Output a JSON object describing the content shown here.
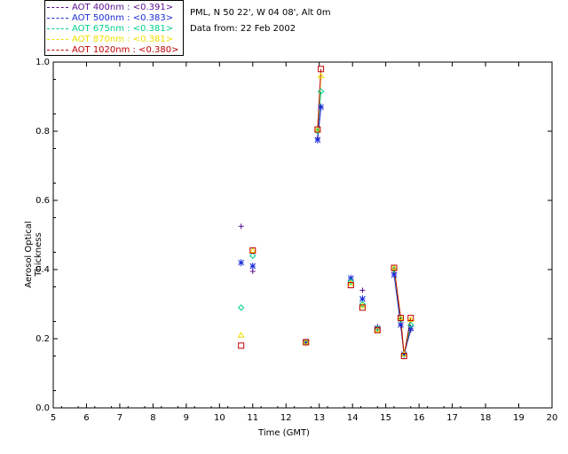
{
  "header": {
    "site": "PML, N 50 22', W 04 08', Alt 0m",
    "date": "Data from: 22 Feb 2002"
  },
  "legend": [
    {
      "label": "AOT  400nm : <0.391>",
      "color": "#5b0f8f"
    },
    {
      "label": "AOT  500nm : <0.383>",
      "color": "#1a2bd6"
    },
    {
      "label": "AOT  675nm : <0.381>",
      "color": "#00d08a"
    },
    {
      "label": "AOT  870nm : <0.381>",
      "color": "#f0e000"
    },
    {
      "label": "AOT 1020nm : <0.380>",
      "color": "#c00000"
    }
  ],
  "chart_data": {
    "type": "scatter",
    "xlabel": "Time (GMT)",
    "ylabel": "Aerosol Optical Thickness",
    "xlim": [
      5,
      20
    ],
    "ylim": [
      0.0,
      1.0
    ],
    "xticks": [
      5,
      6,
      7,
      8,
      9,
      10,
      11,
      12,
      13,
      14,
      15,
      16,
      17,
      18,
      19,
      20
    ],
    "yticks": [
      "0.0",
      "0.2",
      "0.4",
      "0.6",
      "0.8",
      "1.0"
    ],
    "series": [
      {
        "name": "AOT  400nm : <0.391>",
        "marker": "plus",
        "color": "#5b0f8f",
        "points": [
          [
            10.65,
            0.525
          ],
          [
            11.0,
            0.395
          ],
          [
            12.6,
            0.19
          ],
          [
            12.95,
            0.78
          ],
          [
            13.05,
            0.87
          ],
          [
            13.95,
            0.37
          ],
          [
            14.3,
            0.34
          ],
          [
            14.75,
            0.235
          ],
          [
            15.25,
            0.39
          ],
          [
            15.45,
            0.24
          ],
          [
            15.55,
            0.155
          ],
          [
            15.75,
            0.225
          ]
        ],
        "segments": [
          [
            [
              12.95,
              0.78
            ],
            [
              13.05,
              0.87
            ]
          ],
          [
            [
              15.25,
              0.39
            ],
            [
              15.45,
              0.24
            ],
            [
              15.55,
              0.155
            ],
            [
              15.75,
              0.225
            ]
          ]
        ]
      },
      {
        "name": "AOT  500nm : <0.383>",
        "marker": "star",
        "color": "#1a2bd6",
        "points": [
          [
            10.65,
            0.42
          ],
          [
            11.0,
            0.41
          ],
          [
            12.6,
            0.19
          ],
          [
            12.95,
            0.775
          ],
          [
            13.05,
            0.87
          ],
          [
            13.95,
            0.375
          ],
          [
            14.3,
            0.315
          ],
          [
            14.75,
            0.23
          ],
          [
            15.25,
            0.385
          ],
          [
            15.45,
            0.24
          ],
          [
            15.55,
            0.155
          ],
          [
            15.75,
            0.23
          ]
        ],
        "segments": [
          [
            [
              12.95,
              0.775
            ],
            [
              13.05,
              0.87
            ]
          ],
          [
            [
              15.25,
              0.385
            ],
            [
              15.45,
              0.24
            ],
            [
              15.55,
              0.155
            ],
            [
              15.75,
              0.23
            ]
          ]
        ]
      },
      {
        "name": "AOT  675nm : <0.381>",
        "marker": "diamond",
        "color": "#00d08a",
        "points": [
          [
            10.65,
            0.29
          ],
          [
            11.0,
            0.44
          ],
          [
            12.6,
            0.19
          ],
          [
            12.95,
            0.8
          ],
          [
            13.05,
            0.915
          ],
          [
            13.95,
            0.365
          ],
          [
            14.3,
            0.3
          ],
          [
            14.75,
            0.23
          ],
          [
            15.25,
            0.4
          ],
          [
            15.45,
            0.255
          ],
          [
            15.55,
            0.155
          ],
          [
            15.75,
            0.24
          ]
        ],
        "segments": [
          [
            [
              12.95,
              0.8
            ],
            [
              13.05,
              0.915
            ]
          ],
          [
            [
              15.25,
              0.4
            ],
            [
              15.45,
              0.255
            ],
            [
              15.55,
              0.155
            ],
            [
              15.75,
              0.24
            ]
          ]
        ]
      },
      {
        "name": "AOT  870nm : <0.381>",
        "marker": "triangle",
        "color": "#f0e000",
        "points": [
          [
            10.65,
            0.21
          ],
          [
            11.0,
            0.455
          ],
          [
            12.6,
            0.19
          ],
          [
            12.95,
            0.805
          ],
          [
            13.05,
            0.96
          ],
          [
            13.95,
            0.36
          ],
          [
            14.3,
            0.295
          ],
          [
            14.75,
            0.225
          ],
          [
            15.25,
            0.405
          ],
          [
            15.45,
            0.26
          ],
          [
            15.55,
            0.155
          ],
          [
            15.75,
            0.255
          ]
        ],
        "segments": [
          [
            [
              12.95,
              0.805
            ],
            [
              13.05,
              0.96
            ]
          ],
          [
            [
              15.25,
              0.405
            ],
            [
              15.45,
              0.26
            ],
            [
              15.55,
              0.155
            ],
            [
              15.75,
              0.255
            ]
          ]
        ]
      },
      {
        "name": "AOT 1020nm : <0.380>",
        "marker": "square",
        "color": "#c00000",
        "points": [
          [
            10.65,
            0.18
          ],
          [
            11.0,
            0.455
          ],
          [
            12.6,
            0.19
          ],
          [
            12.95,
            0.805
          ],
          [
            13.05,
            0.98
          ],
          [
            13.95,
            0.355
          ],
          [
            14.3,
            0.29
          ],
          [
            14.75,
            0.225
          ],
          [
            15.25,
            0.405
          ],
          [
            15.45,
            0.26
          ],
          [
            15.55,
            0.15
          ],
          [
            15.75,
            0.26
          ]
        ],
        "segments": [
          [
            [
              12.95,
              0.805
            ],
            [
              13.05,
              0.98
            ]
          ],
          [
            [
              15.25,
              0.405
            ],
            [
              15.45,
              0.26
            ],
            [
              15.55,
              0.15
            ],
            [
              15.75,
              0.26
            ]
          ]
        ]
      }
    ],
    "grid": false,
    "legend_position": "top-left"
  }
}
